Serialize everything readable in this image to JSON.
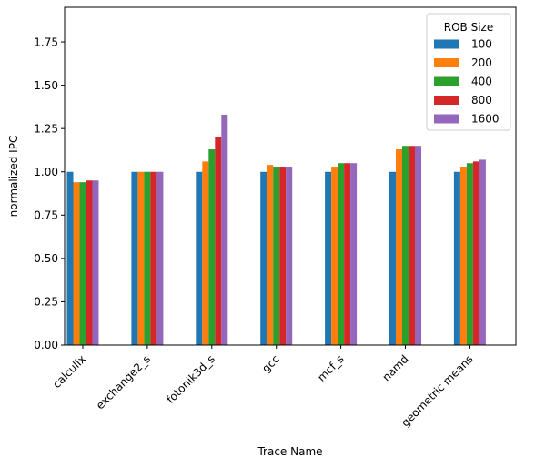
{
  "chart_data": {
    "type": "bar",
    "xlabel": "Trace Name",
    "ylabel": "normalized IPC",
    "ylim": [
      0,
      1.95
    ],
    "yticks": [
      "0.00",
      "0.25",
      "0.50",
      "0.75",
      "1.00",
      "1.25",
      "1.50",
      "1.75"
    ],
    "grid": false,
    "legend_title": "ROB Size",
    "legend_position": "top-right",
    "categories": [
      "calculix",
      "exchange2_s",
      "fotonik3d_s",
      "gcc",
      "mcf_s",
      "namd",
      "geometric means"
    ],
    "series": [
      {
        "name": "100",
        "color": "#1f77b4",
        "values": [
          1.0,
          1.0,
          1.0,
          1.0,
          1.0,
          1.0,
          1.0
        ]
      },
      {
        "name": "200",
        "color": "#ff7f0e",
        "values": [
          0.94,
          1.0,
          1.06,
          1.04,
          1.03,
          1.13,
          1.03
        ]
      },
      {
        "name": "400",
        "color": "#2ca02c",
        "values": [
          0.94,
          1.0,
          1.13,
          1.03,
          1.05,
          1.15,
          1.05
        ]
      },
      {
        "name": "800",
        "color": "#d62728",
        "values": [
          0.95,
          1.0,
          1.2,
          1.03,
          1.05,
          1.15,
          1.06
        ]
      },
      {
        "name": "1600",
        "color": "#9467bd",
        "values": [
          0.95,
          1.0,
          1.33,
          1.03,
          1.05,
          1.15,
          1.07
        ]
      }
    ]
  }
}
